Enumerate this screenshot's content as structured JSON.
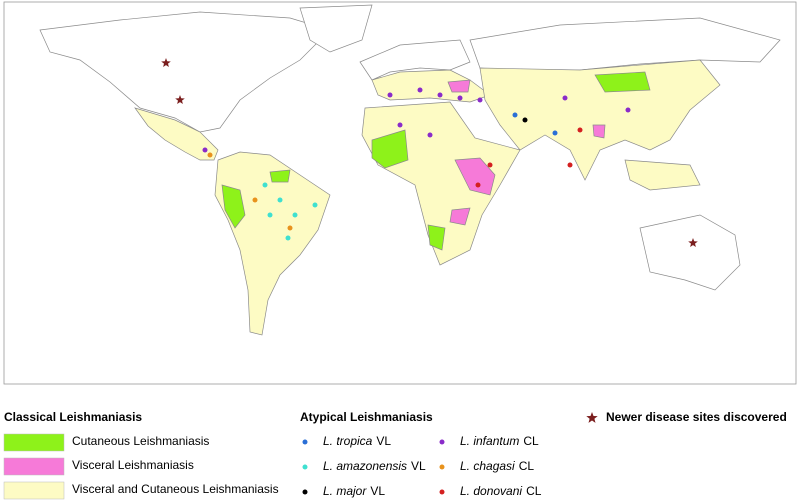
{
  "legend": {
    "classical": {
      "title": "Classical Leishmaniasis",
      "items": [
        {
          "label": "Cutaneous Leishmaniasis",
          "color": "#8ef21a"
        },
        {
          "label": "Visceral Leishmaniasis",
          "color": "#f67ad8"
        },
        {
          "label": "Visceral and Cutaneous Leishmaniasis",
          "color": "#fdfbc4"
        }
      ]
    },
    "atypical": {
      "title": "Atypical Leishmaniasis",
      "items": [
        {
          "species": "L. tropica",
          "form": "VL",
          "color": "#2a6fd6"
        },
        {
          "species": "L. amazonensis",
          "form": "VL",
          "color": "#3fe0d0"
        },
        {
          "species": "L. major",
          "form": "VL",
          "color": "#000000"
        },
        {
          "species": "L. infantum",
          "form": "CL",
          "color": "#8a2bc9"
        },
        {
          "species": "L. chagasi",
          "form": "CL",
          "color": "#e8921c"
        },
        {
          "species": "L. donovani",
          "form": "CL",
          "color": "#d42020"
        }
      ]
    },
    "new_sites": {
      "label": "Newer disease sites discovered",
      "color": "#7b1f1f"
    }
  }
}
